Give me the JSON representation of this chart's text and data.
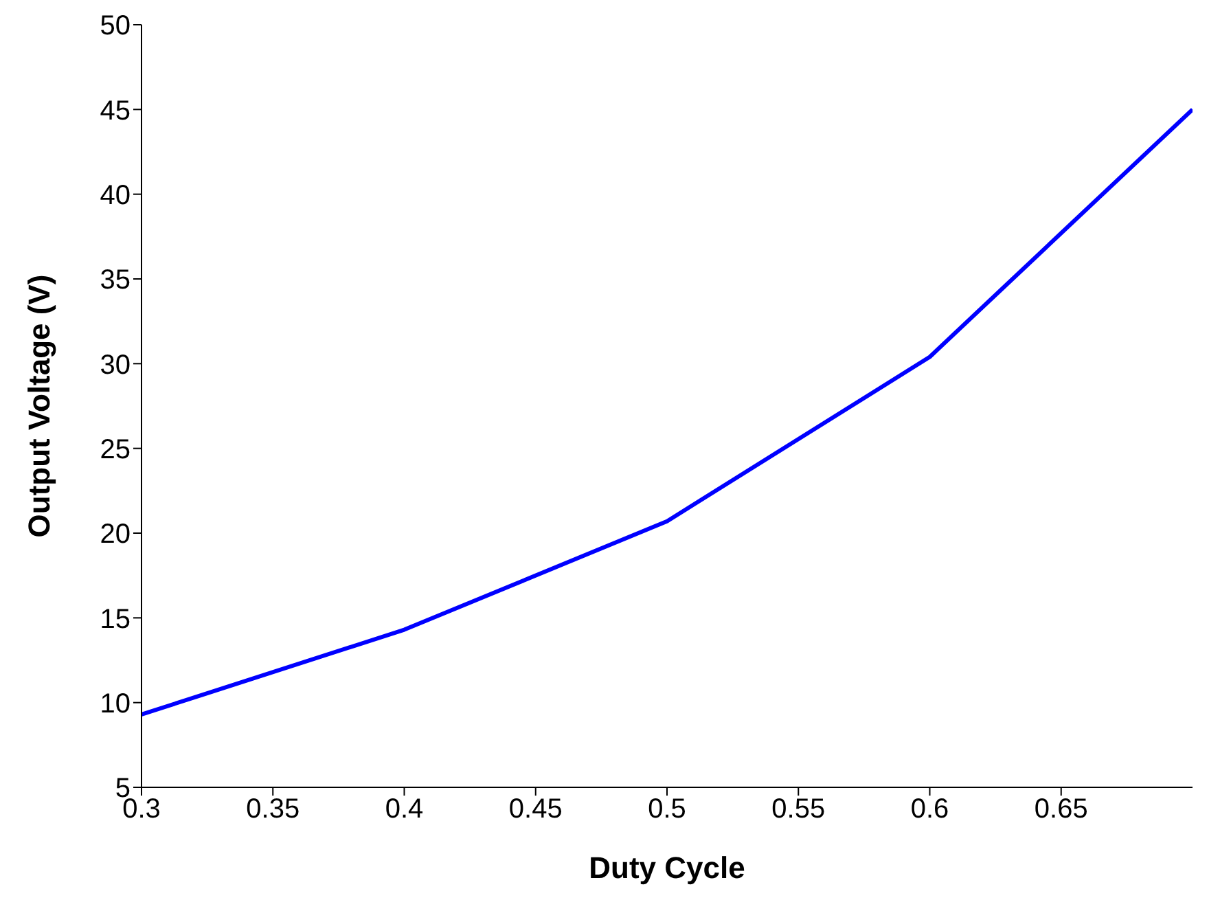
{
  "chart_data": {
    "type": "line",
    "xlabel": "Duty Cycle",
    "ylabel": "Output Voltage (V)",
    "x": [
      0.3,
      0.4,
      0.5,
      0.6,
      0.7
    ],
    "series": [
      {
        "color": "#0000ff",
        "values": [
          9.3,
          14.3,
          20.7,
          30.4,
          45.0
        ]
      }
    ],
    "xlim": [
      0.3,
      0.7
    ],
    "xticks": [
      0.3,
      0.35,
      0.4,
      0.45,
      0.5,
      0.55,
      0.6,
      0.65
    ],
    "ylim": [
      5,
      50
    ],
    "yticks": [
      5,
      10,
      15,
      20,
      25,
      30,
      35,
      40,
      45,
      50
    ],
    "grid": false,
    "legend": false,
    "marker": "none",
    "line_style": "solid"
  }
}
